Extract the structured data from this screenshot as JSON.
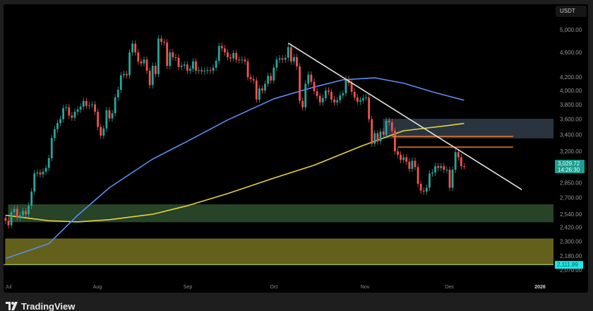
{
  "header": {
    "unit_label": "USDT"
  },
  "footer": {
    "brand": "TradingView"
  },
  "colors": {
    "up": "#26a69a",
    "down": "#ef5350",
    "ma_fast": "#5b8def",
    "ma_slow": "#e3d33a",
    "trendline": "#e6e1dc",
    "resistance": "#f07a30",
    "last_price_bg": "#1f9e8f",
    "support_label_bg": "#1ee8e8"
  },
  "chart_data": {
    "type": "candlestick",
    "y_scale": "log",
    "ylim": [
      2050,
      5100
    ],
    "x_ticks": [
      "Jul",
      "Aug",
      "Sep",
      "Oct",
      "Nov",
      "Dec",
      "2026"
    ],
    "y_ticks": [
      5000,
      4600,
      4200,
      4000,
      3800,
      3600,
      3400,
      3200,
      2850,
      2700,
      2540,
      2420,
      2300,
      2180,
      2070
    ],
    "y_tick_labels": [
      "5,000.00",
      "4,600.00",
      "4,200.00",
      "4,000.00",
      "3,800.00",
      "3,600.00",
      "3,400.00",
      "3,200.00",
      "2,850.00",
      "2,700.00",
      "2,540.00",
      "2,420.00",
      "2,300.00",
      "2,180.00",
      "2,070.00"
    ],
    "last_price": {
      "value": 3029.72,
      "label": "3,029.72",
      "countdown": "14:26:30"
    },
    "level_label": {
      "value": 2111.89,
      "label": "2,111.89"
    },
    "closes": [
      [
        "Jun 30",
        2480
      ],
      [
        "Jul 1",
        2440
      ],
      [
        "Jul 2",
        2560
      ],
      [
        "Jul 3",
        2590
      ],
      [
        "Jul 4",
        2510
      ],
      [
        "Jul 5",
        2530
      ],
      [
        "Jul 6",
        2570
      ],
      [
        "Jul 7",
        2540
      ],
      [
        "Jul 8",
        2620
      ],
      [
        "Jul 9",
        2760
      ],
      [
        "Jul 10",
        2950
      ],
      [
        "Jul 11",
        2960
      ],
      [
        "Jul 12",
        2940
      ],
      [
        "Jul 13",
        2970
      ],
      [
        "Jul 14",
        3010
      ],
      [
        "Jul 15",
        3120
      ],
      [
        "Jul 16",
        3360
      ],
      [
        "Jul 17",
        3470
      ],
      [
        "Jul 18",
        3550
      ],
      [
        "Jul 19",
        3600
      ],
      [
        "Jul 20",
        3750
      ],
      [
        "Jul 21",
        3760
      ],
      [
        "Jul 22",
        3650
      ],
      [
        "Jul 23",
        3620
      ],
      [
        "Jul 24",
        3700
      ],
      [
        "Jul 25",
        3730
      ],
      [
        "Jul 26",
        3770
      ],
      [
        "Jul 27",
        3850
      ],
      [
        "Jul 28",
        3780
      ],
      [
        "Jul 29",
        3790
      ],
      [
        "Jul 30",
        3800
      ],
      [
        "Jul 31",
        3700
      ],
      [
        "Aug 1",
        3500
      ],
      [
        "Aug 2",
        3390
      ],
      [
        "Aug 3",
        3480
      ],
      [
        "Aug 4",
        3720
      ],
      [
        "Aug 5",
        3610
      ],
      [
        "Aug 6",
        3680
      ],
      [
        "Aug 7",
        3900
      ],
      [
        "Aug 8",
        4010
      ],
      [
        "Aug 9",
        4230
      ],
      [
        "Aug 10",
        4250
      ],
      [
        "Aug 11",
        4230
      ],
      [
        "Aug 12",
        4600
      ],
      [
        "Aug 13",
        4750
      ],
      [
        "Aug 14",
        4600
      ],
      [
        "Aug 15",
        4450
      ],
      [
        "Aug 16",
        4420
      ],
      [
        "Aug 17",
        4480
      ],
      [
        "Aug 18",
        4300
      ],
      [
        "Aug 19",
        4080
      ],
      [
        "Aug 20",
        4380
      ],
      [
        "Aug 21",
        4250
      ],
      [
        "Aug 22",
        4840
      ],
      [
        "Aug 23",
        4780
      ],
      [
        "Aug 24",
        4770
      ],
      [
        "Aug 25",
        4380
      ],
      [
        "Aug 26",
        4600
      ],
      [
        "Aug 27",
        4520
      ],
      [
        "Aug 28",
        4510
      ],
      [
        "Aug 29",
        4360
      ],
      [
        "Aug 30",
        4380
      ],
      [
        "Aug 31",
        4400
      ],
      [
        "Sep 1",
        4300
      ],
      [
        "Sep 2",
        4330
      ],
      [
        "Sep 3",
        4450
      ],
      [
        "Sep 4",
        4300
      ],
      [
        "Sep 5",
        4310
      ],
      [
        "Sep 6",
        4290
      ],
      [
        "Sep 7",
        4300
      ],
      [
        "Sep 8",
        4310
      ],
      [
        "Sep 9",
        4300
      ],
      [
        "Sep 10",
        4350
      ],
      [
        "Sep 11",
        4460
      ],
      [
        "Sep 12",
        4710
      ],
      [
        "Sep 13",
        4670
      ],
      [
        "Sep 14",
        4600
      ],
      [
        "Sep 15",
        4520
      ],
      [
        "Sep 16",
        4500
      ],
      [
        "Sep 17",
        4590
      ],
      [
        "Sep 18",
        4480
      ],
      [
        "Sep 19",
        4470
      ],
      [
        "Sep 20",
        4480
      ],
      [
        "Sep 21",
        4450
      ],
      [
        "Sep 22",
        4200
      ],
      [
        "Sep 23",
        4170
      ],
      [
        "Sep 24",
        4150
      ],
      [
        "Sep 25",
        3870
      ],
      [
        "Sep 26",
        4030
      ],
      [
        "Sep 27",
        4000
      ],
      [
        "Sep 28",
        4100
      ],
      [
        "Sep 29",
        4220
      ],
      [
        "Sep 30",
        4150
      ],
      [
        "Oct 1",
        4350
      ],
      [
        "Oct 2",
        4480
      ],
      [
        "Oct 3",
        4500
      ],
      [
        "Oct 4",
        4480
      ],
      [
        "Oct 5",
        4510
      ],
      [
        "Oct 6",
        4690
      ],
      [
        "Oct 7",
        4450
      ],
      [
        "Oct 8",
        4520
      ],
      [
        "Oct 9",
        4370
      ],
      [
        "Oct 10",
        3850
      ],
      [
        "Oct 11",
        3760
      ],
      [
        "Oct 12",
        4100
      ],
      [
        "Oct 13",
        4240
      ],
      [
        "Oct 14",
        4130
      ],
      [
        "Oct 15",
        3990
      ],
      [
        "Oct 16",
        3920
      ],
      [
        "Oct 17",
        3830
      ],
      [
        "Oct 18",
        3890
      ],
      [
        "Oct 19",
        4000
      ],
      [
        "Oct 20",
        3980
      ],
      [
        "Oct 21",
        3870
      ],
      [
        "Oct 22",
        3830
      ],
      [
        "Oct 23",
        3860
      ],
      [
        "Oct 24",
        3930
      ],
      [
        "Oct 25",
        3960
      ],
      [
        "Oct 26",
        4170
      ],
      [
        "Oct 27",
        4110
      ],
      [
        "Oct 28",
        3980
      ],
      [
        "Oct 29",
        3900
      ],
      [
        "Oct 30",
        3840
      ],
      [
        "Oct 31",
        3860
      ],
      [
        "Nov 1",
        3890
      ],
      [
        "Nov 2",
        3900
      ],
      [
        "Nov 3",
        3600
      ],
      [
        "Nov 4",
        3290
      ],
      [
        "Nov 5",
        3420
      ],
      [
        "Nov 6",
        3320
      ],
      [
        "Nov 7",
        3440
      ],
      [
        "Nov 8",
        3400
      ],
      [
        "Nov 9",
        3580
      ],
      [
        "Nov 10",
        3560
      ],
      [
        "Nov 11",
        3450
      ],
      [
        "Nov 12",
        3200
      ],
      [
        "Nov 13",
        3160
      ],
      [
        "Nov 14",
        3100
      ],
      [
        "Nov 15",
        3130
      ],
      [
        "Nov 16",
        3080
      ],
      [
        "Nov 17",
        3000
      ],
      [
        "Nov 18",
        3090
      ],
      [
        "Nov 19",
        3020
      ],
      [
        "Nov 20",
        2840
      ],
      [
        "Nov 21",
        2770
      ],
      [
        "Nov 22",
        2760
      ],
      [
        "Nov 23",
        2800
      ],
      [
        "Nov 24",
        2950
      ],
      [
        "Nov 25",
        2960
      ],
      [
        "Nov 26",
        3030
      ],
      [
        "Nov 27",
        3010
      ],
      [
        "Nov 28",
        3030
      ],
      [
        "Nov 29",
        2990
      ],
      [
        "Nov 30",
        2990
      ],
      [
        "Dec 1",
        2800
      ],
      [
        "Dec 2",
        2990
      ],
      [
        "Dec 3",
        3190
      ],
      [
        "Dec 4",
        3130
      ],
      [
        "Dec 5",
        3030
      ],
      [
        "Dec 6",
        3029.72
      ]
    ],
    "ma_fast": [
      [
        "Jun 30",
        2160
      ],
      [
        "Jul 15",
        2280
      ],
      [
        "Jul 25",
        2530
      ],
      [
        "Aug 5",
        2800
      ],
      [
        "Aug 20",
        3110
      ],
      [
        "Sep 1",
        3320
      ],
      [
        "Sep 15",
        3590
      ],
      [
        "Oct 1",
        3880
      ],
      [
        "Oct 15",
        4050
      ],
      [
        "Oct 25",
        4160
      ],
      [
        "Nov 5",
        4190
      ],
      [
        "Nov 15",
        4110
      ],
      [
        "Nov 25",
        3980
      ],
      [
        "Dec 6",
        3860
      ]
    ],
    "ma_slow": [
      [
        "Jun 30",
        2530
      ],
      [
        "Jul 15",
        2480
      ],
      [
        "Jul 25",
        2470
      ],
      [
        "Aug 5",
        2490
      ],
      [
        "Aug 20",
        2540
      ],
      [
        "Sep 1",
        2620
      ],
      [
        "Sep 15",
        2740
      ],
      [
        "Oct 1",
        2900
      ],
      [
        "Oct 15",
        3040
      ],
      [
        "Nov 1",
        3270
      ],
      [
        "Nov 15",
        3450
      ],
      [
        "Dec 1",
        3520
      ],
      [
        "Dec 6",
        3545
      ]
    ],
    "zones": [
      {
        "from": "Nov 8",
        "top": 3600,
        "bottom": 3360,
        "color": "#2e3a46"
      },
      {
        "from": "Jul 1",
        "top": 2630,
        "bottom": 2470,
        "color": "#2b4a2c"
      },
      {
        "from": "Jun 30",
        "top": 2320,
        "bottom": 2110,
        "color": "#6e6a1e"
      }
    ],
    "resistance_lines": [
      {
        "from": "Nov 11",
        "to": "Dec 23",
        "price": 3380
      },
      {
        "from": "Nov 13",
        "to": "Dec 23",
        "price": 3250
      }
    ],
    "trendline": {
      "from": [
        "Oct 6",
        4760
      ],
      "to": [
        "Dec 26",
        2780
      ]
    }
  }
}
